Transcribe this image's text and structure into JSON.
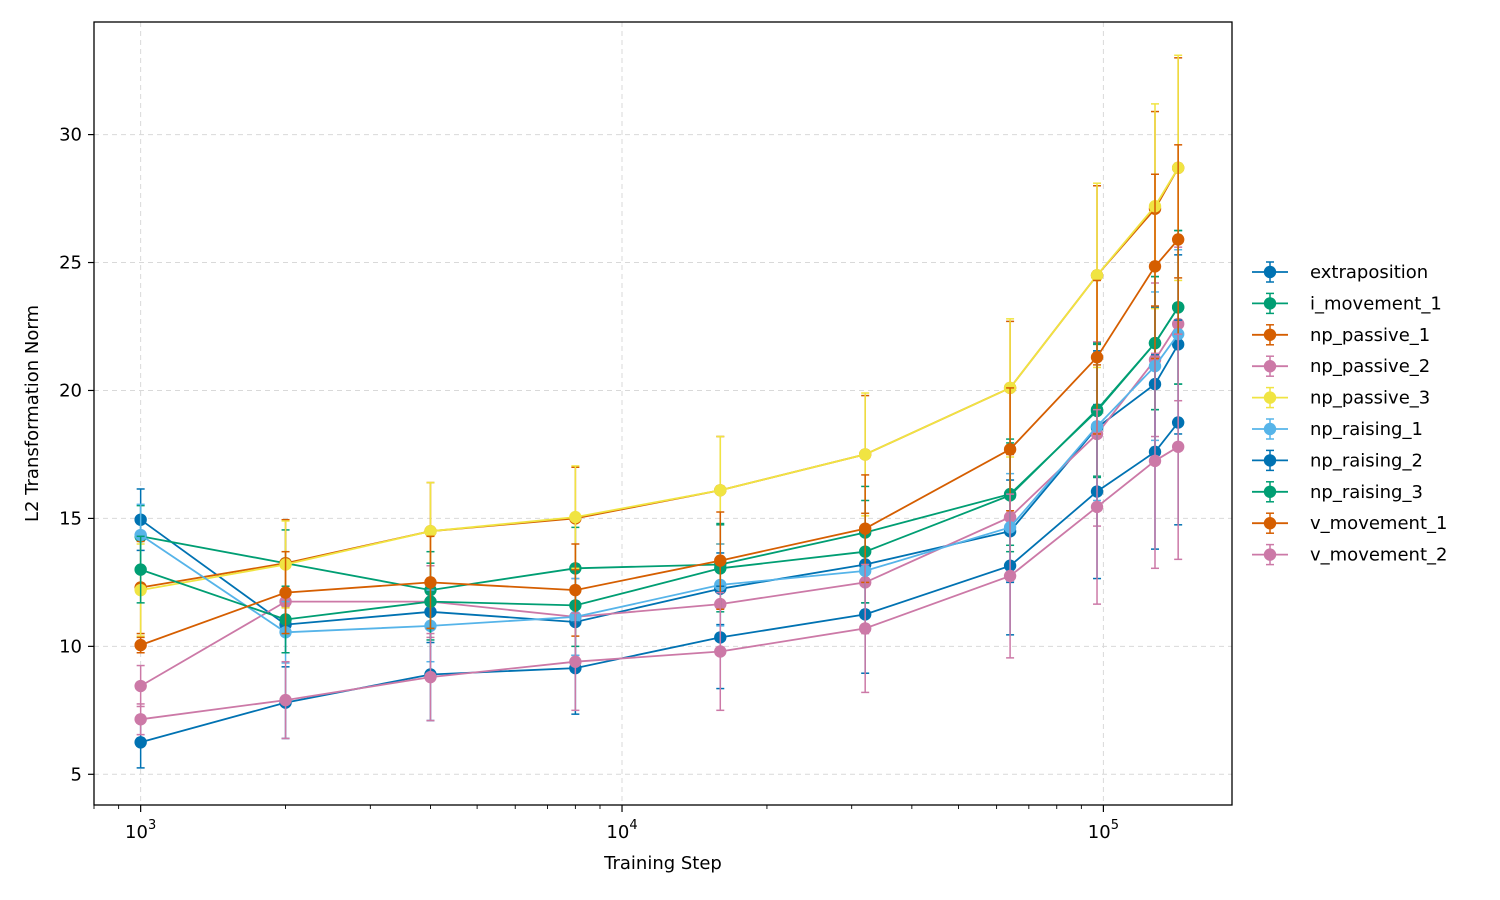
{
  "chart_data": {
    "type": "line",
    "title": "",
    "xlabel": "Training Step",
    "ylabel": "L2 Transformation Norm",
    "xscale": "log",
    "xlim": [
      800,
      185000
    ],
    "ylim": [
      3.8,
      34.4
    ],
    "x": [
      1000,
      2000,
      4000,
      8000,
      16000,
      32000,
      64000,
      97000,
      128000,
      143000
    ],
    "xticks": [
      {
        "value": 1000,
        "base": "10",
        "exp": "3"
      },
      {
        "value": 10000,
        "base": "10",
        "exp": "4"
      },
      {
        "value": 100000,
        "base": "10",
        "exp": "5"
      }
    ],
    "yticks": [
      5,
      10,
      15,
      20,
      25,
      30
    ],
    "grid": true,
    "legend_position": "right",
    "series": [
      {
        "name": "extraposition",
        "color": "#0072b2",
        "values": [
          14.95,
          10.85,
          11.35,
          10.95,
          12.25,
          13.2,
          14.5,
          18.55,
          20.25,
          21.8
        ],
        "errors": [
          1.2,
          1.1,
          1.2,
          1.3,
          1.4,
          1.5,
          2.0,
          3.0,
          3.0,
          3.5
        ]
      },
      {
        "name": "i_movement_1",
        "color": "#009e73",
        "values": [
          14.3,
          13.25,
          12.2,
          13.05,
          13.2,
          14.45,
          15.95,
          19.2,
          21.85,
          23.25
        ],
        "errors": [
          1.2,
          1.3,
          1.5,
          1.6,
          1.6,
          1.8,
          2.0,
          2.6,
          2.6,
          3.0
        ]
      },
      {
        "name": "np_passive_1",
        "color": "#d55e00",
        "values": [
          12.3,
          13.25,
          14.5,
          15.0,
          16.1,
          17.5,
          20.1,
          24.5,
          27.1,
          28.7
        ],
        "errors": [
          1.8,
          1.7,
          1.9,
          2.0,
          2.1,
          2.3,
          2.6,
          3.5,
          3.8,
          4.3
        ]
      },
      {
        "name": "np_passive_2",
        "color": "#cc79a7",
        "values": [
          8.45,
          11.75,
          11.75,
          11.15,
          11.65,
          12.5,
          15.05,
          18.3,
          21.2,
          22.6
        ],
        "errors": [
          0.8,
          1.3,
          1.4,
          1.5,
          1.7,
          2.0,
          2.5,
          3.6,
          3.0,
          3.0
        ]
      },
      {
        "name": "np_passive_3",
        "color": "#f0e442",
        "values": [
          12.2,
          13.2,
          14.5,
          15.05,
          16.1,
          17.5,
          20.1,
          24.5,
          27.2,
          28.7
        ],
        "errors": [
          1.8,
          1.7,
          1.9,
          2.0,
          2.1,
          2.4,
          2.7,
          3.6,
          4.0,
          4.4
        ]
      },
      {
        "name": "np_raising_1",
        "color": "#56b4e9",
        "values": [
          14.35,
          10.55,
          10.8,
          11.15,
          12.4,
          12.95,
          14.65,
          18.6,
          20.95,
          22.2
        ],
        "errors": [
          1.2,
          1.2,
          1.4,
          1.5,
          1.6,
          1.7,
          2.1,
          2.9,
          2.9,
          3.3
        ]
      },
      {
        "name": "np_raising_2",
        "color": "#0072b2",
        "values": [
          6.25,
          7.8,
          8.9,
          9.15,
          10.35,
          11.25,
          13.15,
          16.05,
          17.6,
          18.75
        ],
        "errors": [
          1.0,
          1.4,
          1.8,
          1.8,
          2.0,
          2.3,
          2.7,
          3.4,
          3.8,
          4.0
        ]
      },
      {
        "name": "np_raising_3",
        "color": "#009e73",
        "values": [
          13.0,
          11.05,
          11.75,
          11.6,
          13.05,
          13.7,
          15.9,
          19.25,
          21.85,
          23.25
        ],
        "errors": [
          1.3,
          1.3,
          1.5,
          1.6,
          1.7,
          2.0,
          2.2,
          2.6,
          2.6,
          3.0
        ]
      },
      {
        "name": "v_movement_1",
        "color": "#d55e00",
        "values": [
          10.05,
          12.1,
          12.5,
          12.2,
          13.35,
          14.6,
          17.7,
          21.3,
          24.85,
          25.9
        ],
        "errors": [
          0.3,
          1.6,
          1.8,
          1.8,
          1.9,
          2.1,
          2.4,
          3.0,
          3.6,
          3.7
        ]
      },
      {
        "name": "v_movement_2",
        "color": "#cc79a7",
        "values": [
          7.15,
          7.9,
          8.8,
          9.4,
          9.8,
          10.7,
          12.75,
          15.45,
          17.25,
          17.8
        ],
        "errors": [
          0.6,
          1.5,
          1.7,
          1.9,
          2.3,
          2.5,
          3.2,
          3.8,
          4.2,
          4.4
        ]
      }
    ]
  }
}
